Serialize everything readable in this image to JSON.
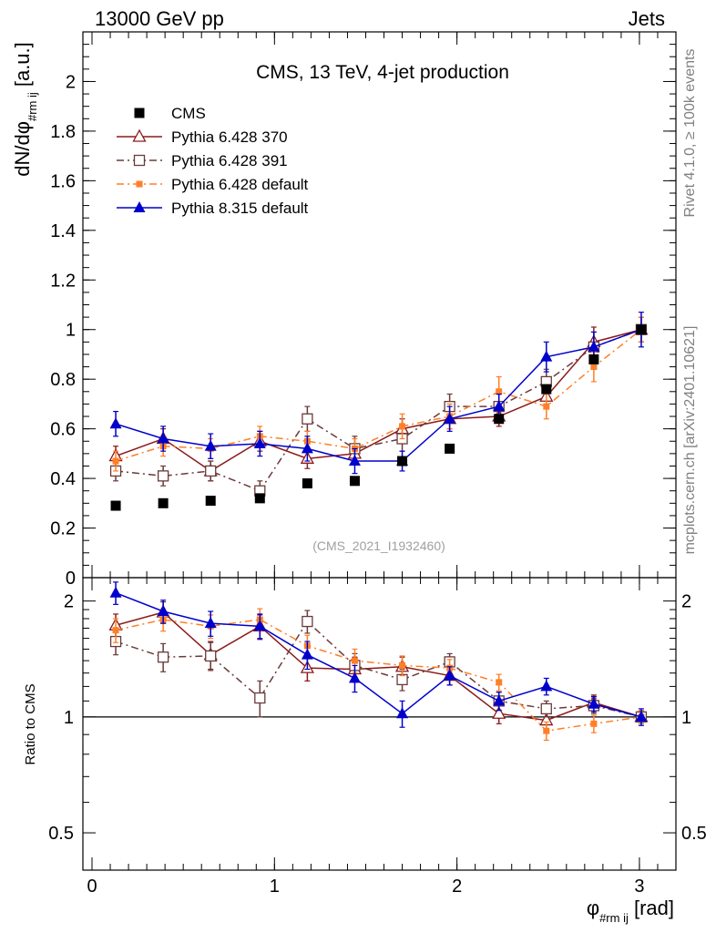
{
  "header": {
    "left": "13000 GeV pp",
    "right": "Jets"
  },
  "side": {
    "rivet": "Rivet 4.1.0, ≥ 100k events",
    "mcplots": "mcplots.cern.ch [arXiv:2401.10621]"
  },
  "chart_data": {
    "type": "line",
    "title": "CMS, 13 TeV, 4-jet production",
    "watermark": "(CMS_2021_I1932460)",
    "xlabel": "φ #rm ij [rad]",
    "ylabel": "dN/dφ #rm ij [a.u.]",
    "ratio_ylabel": "Ratio to CMS",
    "xlim": [
      -0.05,
      3.2
    ],
    "ylim": [
      0,
      2.2
    ],
    "ratio_ylim": [
      0.4,
      2.3
    ],
    "ratio_scale": "log",
    "x_ticks": [
      0,
      1,
      2,
      3
    ],
    "y_ticks": [
      0,
      0.2,
      0.4,
      0.6,
      0.8,
      1,
      1.2,
      1.4,
      1.6,
      1.8,
      2
    ],
    "y_tick_labels": [
      "0",
      "0.2",
      "0.4",
      "0.6",
      "0.8",
      "1",
      "1.2",
      "1.4",
      "1.6",
      "1.8",
      "2"
    ],
    "ratio_ticks": [
      0.5,
      1,
      2
    ],
    "ratio_tick_labels": [
      "0.5",
      "1",
      "2"
    ],
    "x": [
      0.13,
      0.39,
      0.65,
      0.92,
      1.18,
      1.44,
      1.7,
      1.96,
      2.23,
      2.49,
      2.75,
      3.01
    ],
    "series": [
      {
        "name": "CMS",
        "color": "#000000",
        "marker": "square",
        "line": "none",
        "values": [
          0.29,
          0.3,
          0.31,
          0.32,
          0.38,
          0.39,
          0.47,
          0.52,
          0.64,
          0.76,
          0.88,
          1.0
        ],
        "errors": [
          0.005,
          0.005,
          0.005,
          0.005,
          0.005,
          0.005,
          0.005,
          0.005,
          0.005,
          0.005,
          0.005,
          0.005
        ],
        "ratio": [
          1,
          1,
          1,
          1,
          1,
          1,
          1,
          1,
          1,
          1,
          1,
          1
        ],
        "ratio_errors": [
          0,
          0,
          0,
          0,
          0,
          0,
          0,
          0,
          0,
          0,
          0,
          0
        ]
      },
      {
        "name": "Pythia 6.428 370",
        "color": "#8b1a1a",
        "marker": "triangle-open",
        "line": "solid",
        "values": [
          0.49,
          0.56,
          0.43,
          0.55,
          0.48,
          0.5,
          0.6,
          0.64,
          0.65,
          0.73,
          0.95,
          1.0
        ],
        "errors": [
          0.04,
          0.04,
          0.04,
          0.04,
          0.04,
          0.04,
          0.04,
          0.04,
          0.04,
          0.05,
          0.06,
          0.05
        ],
        "ratio": [
          1.73,
          1.87,
          1.45,
          1.72,
          1.34,
          1.33,
          1.35,
          1.28,
          1.02,
          0.98,
          1.09,
          1.0
        ],
        "ratio_errors": [
          0.12,
          0.12,
          0.12,
          0.12,
          0.1,
          0.1,
          0.08,
          0.07,
          0.06,
          0.05,
          0.05,
          0.04
        ]
      },
      {
        "name": "Pythia 6.428 391",
        "color": "#6b3a3a",
        "marker": "square-open",
        "line": "dashdot",
        "values": [
          0.43,
          0.41,
          0.43,
          0.35,
          0.64,
          0.52,
          0.56,
          0.69,
          0.69,
          0.79,
          0.93,
          1.0
        ],
        "errors": [
          0.04,
          0.04,
          0.04,
          0.04,
          0.05,
          0.05,
          0.05,
          0.05,
          0.05,
          0.05,
          0.06,
          0.05
        ],
        "ratio": [
          1.57,
          1.43,
          1.44,
          1.12,
          1.77,
          1.36,
          1.25,
          1.39,
          1.1,
          1.05,
          1.07,
          1.0
        ],
        "ratio_errors": [
          0.12,
          0.12,
          0.12,
          0.12,
          0.12,
          0.1,
          0.08,
          0.07,
          0.06,
          0.05,
          0.05,
          0.04
        ]
      },
      {
        "name": "Pythia 6.428 default",
        "color": "#ff7f27",
        "marker": "square-small",
        "line": "dashdot",
        "values": [
          0.47,
          0.53,
          0.52,
          0.57,
          0.55,
          0.52,
          0.61,
          0.65,
          0.75,
          0.69,
          0.85,
          1.0
        ],
        "errors": [
          0.04,
          0.04,
          0.04,
          0.04,
          0.04,
          0.04,
          0.05,
          0.05,
          0.06,
          0.05,
          0.06,
          0.05
        ],
        "ratio": [
          1.68,
          1.79,
          1.72,
          1.79,
          1.53,
          1.4,
          1.36,
          1.34,
          1.23,
          0.92,
          0.96,
          1.0
        ],
        "ratio_errors": [
          0.12,
          0.12,
          0.12,
          0.12,
          0.1,
          0.1,
          0.08,
          0.07,
          0.06,
          0.05,
          0.05,
          0.04
        ]
      },
      {
        "name": "Pythia 8.315 default",
        "color": "#0000cc",
        "marker": "triangle-filled",
        "line": "solid",
        "values": [
          0.62,
          0.56,
          0.53,
          0.54,
          0.52,
          0.47,
          0.47,
          0.64,
          0.69,
          0.89,
          0.93,
          1.0
        ],
        "errors": [
          0.05,
          0.05,
          0.05,
          0.05,
          0.05,
          0.05,
          0.04,
          0.05,
          0.05,
          0.06,
          0.06,
          0.07
        ],
        "ratio": [
          2.1,
          1.88,
          1.75,
          1.72,
          1.45,
          1.26,
          1.02,
          1.28,
          1.1,
          1.2,
          1.08,
          1.0
        ],
        "ratio_errors": [
          0.14,
          0.13,
          0.13,
          0.13,
          0.12,
          0.1,
          0.08,
          0.07,
          0.06,
          0.06,
          0.05,
          0.05
        ]
      }
    ]
  }
}
